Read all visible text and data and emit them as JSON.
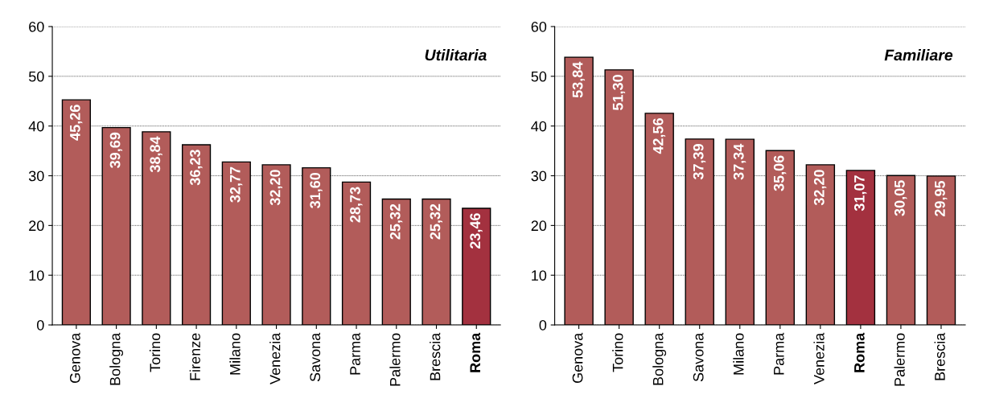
{
  "chart_data": [
    {
      "type": "bar",
      "title": "Utilitaria",
      "categories": [
        "Genova",
        "Bologna",
        "Torino",
        "Firenze",
        "Milano",
        "Venezia",
        "Savona",
        "Parma",
        "Palermo",
        "Brescia",
        "Roma"
      ],
      "values": [
        45.26,
        39.69,
        38.84,
        36.23,
        32.77,
        32.2,
        31.6,
        28.73,
        25.32,
        25.32,
        23.46
      ],
      "value_labels": [
        "45,26",
        "39,69",
        "38,84",
        "36,23",
        "32,77",
        "32,20",
        "31,60",
        "28,73",
        "25,32",
        "25,32",
        "23,46"
      ],
      "colors": [
        "#b25c5a",
        "#b25c5a",
        "#b25c5a",
        "#b25c5a",
        "#b25c5a",
        "#b25c5a",
        "#b25c5a",
        "#b25c5a",
        "#b25c5a",
        "#b25c5a",
        "#a3313f"
      ],
      "ylim": [
        0,
        60
      ],
      "yticks": [
        0,
        10,
        20,
        30,
        40,
        50,
        60
      ],
      "grid": "y"
    },
    {
      "type": "bar",
      "title": "Familiare",
      "categories": [
        "Genova",
        "Torino",
        "Bologna",
        "Savona",
        "Milano",
        "Parma",
        "Venezia",
        "Roma",
        "Palermo",
        "Brescia"
      ],
      "values": [
        53.84,
        51.3,
        42.56,
        37.39,
        37.34,
        35.06,
        32.2,
        31.07,
        30.05,
        29.95
      ],
      "value_labels": [
        "53,84",
        "51,30",
        "42,56",
        "37,39",
        "37,34",
        "35,06",
        "32,20",
        "31,07",
        "30,05",
        "29,95"
      ],
      "colors": [
        "#b25c5a",
        "#b25c5a",
        "#b25c5a",
        "#b25c5a",
        "#b25c5a",
        "#b25c5a",
        "#b25c5a",
        "#a3313f",
        "#b25c5a",
        "#b25c5a"
      ],
      "ylim": [
        0,
        60
      ],
      "yticks": [
        0,
        10,
        20,
        30,
        40,
        50,
        60
      ],
      "grid": "y"
    }
  ]
}
